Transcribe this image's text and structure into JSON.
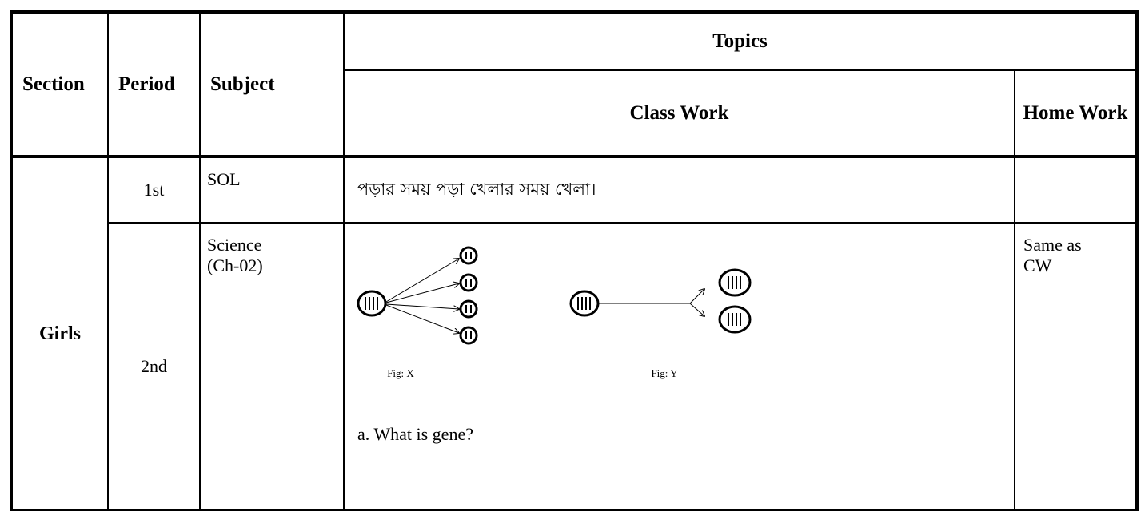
{
  "table": {
    "header": {
      "section": "Section",
      "period": "Period",
      "subject": "Subject",
      "topics": "Topics",
      "class_work": "Class Work",
      "home_work": "Home Work"
    },
    "groups": [
      {
        "section": "Girls",
        "rows": [
          {
            "period": "1st",
            "subject": "SOL",
            "class_work": "পড়ার সময় পড়া খেলার সময় খেলা।"
          },
          {
            "period": "2nd",
            "subject": "Science (Ch-02)",
            "class_work": {
              "figures": [
                "Fig: X",
                "Fig: Y"
              ],
              "question": "a. What is gene?"
            },
            "home_work": "Same as CW"
          }
        ]
      }
    ]
  }
}
